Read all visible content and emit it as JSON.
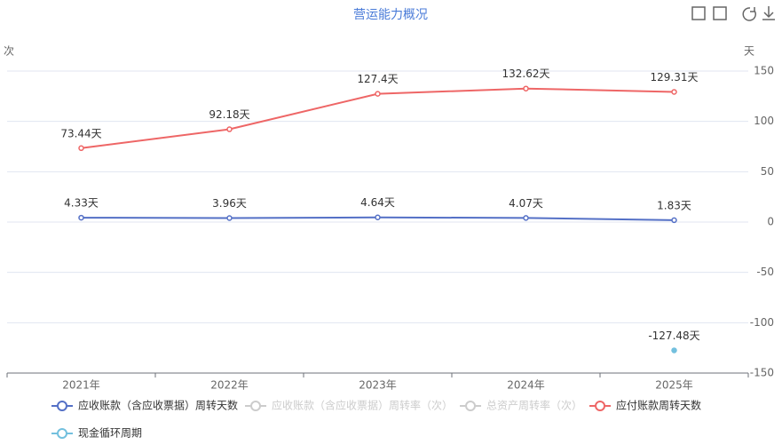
{
  "chart_data": {
    "type": "line",
    "title": "营运能力概况",
    "y_label": "次",
    "y2_label": "天",
    "categories": [
      "2021年",
      "2022年",
      "2023年",
      "2024年",
      "2025年"
    ],
    "y2lim": [
      -150,
      150
    ],
    "y2ticks": [
      150,
      100,
      50,
      0,
      -50,
      -100,
      -150
    ],
    "grid": true,
    "series": [
      {
        "name": "应收账款（含应收票据）周转天数",
        "color": "#5470c6",
        "axis": "y2",
        "visible": true,
        "values": [
          4.33,
          3.96,
          4.64,
          4.07,
          1.83
        ],
        "value_labels": [
          "4.33天",
          "3.96天",
          "4.64天",
          "4.07天",
          "1.83天"
        ]
      },
      {
        "name": "应收账款（含应收票据）周转率（次）",
        "color": "#cccccc",
        "visible": false,
        "values": [
          null,
          null,
          null,
          null,
          null
        ]
      },
      {
        "name": "总资产周转率（次）",
        "color": "#cccccc",
        "visible": false,
        "values": [
          null,
          null,
          null,
          null,
          null
        ]
      },
      {
        "name": "应付账款周转天数",
        "color": "#ee6666",
        "axis": "y2",
        "visible": true,
        "values": [
          73.44,
          92.18,
          127.4,
          132.62,
          129.31
        ],
        "value_labels": [
          "73.44天",
          "92.18天",
          "127.4天",
          "132.62天",
          "129.31天"
        ]
      },
      {
        "name": "现金循环周期",
        "color": "#73c0de",
        "axis": "y2",
        "visible": true,
        "values": [
          null,
          null,
          null,
          null,
          -127.48
        ],
        "value_labels": [
          null,
          null,
          null,
          null,
          "-127.48天"
        ]
      }
    ]
  }
}
